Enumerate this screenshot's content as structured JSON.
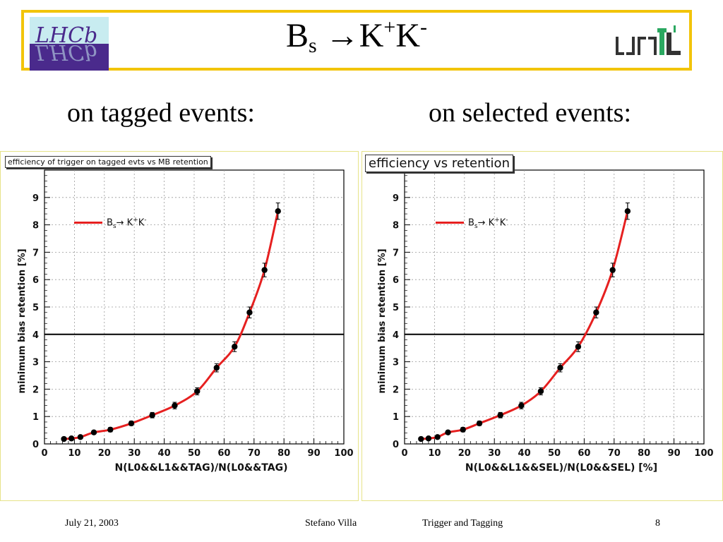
{
  "slide": {
    "title": {
      "base": "B",
      "sub": "s",
      "arrow": " →K",
      "sup1": "+",
      "mid": "K",
      "sup2": "-"
    },
    "subheads": {
      "left": "on tagged events:",
      "right": "on selected events:"
    },
    "logos": {
      "left": "LHCb",
      "right": "UNIL"
    },
    "footer": {
      "date": "July 21, 2003",
      "author": "Stefano Villa",
      "talk": "Trigger and Tagging",
      "page": "8"
    }
  },
  "colors": {
    "header_border": "#f2c40a",
    "curve": "#e62020",
    "marker": "#000000",
    "threshold": "#000000"
  },
  "chart_data": [
    {
      "type": "line",
      "title": "efficiency of trigger on tagged evts vs MB retention",
      "xlabel": "N(L0&&L1&&TAG)/N(L0&&TAG)",
      "ylabel": "minimum bias retention [%]",
      "xlim": [
        0,
        100
      ],
      "ylim": [
        0,
        10
      ],
      "xticks": [
        "0",
        "10",
        "20",
        "30",
        "40",
        "50",
        "60",
        "70",
        "80",
        "90",
        "100"
      ],
      "yticks": [
        "0",
        "1",
        "2",
        "3",
        "4",
        "5",
        "6",
        "7",
        "8",
        "9"
      ],
      "grid": true,
      "legend_position": "top-left",
      "threshold_y": 4,
      "series": [
        {
          "name_parts": {
            "b": "B",
            "s": "s",
            "arrow": "→ K",
            "p": "+",
            "k": "K",
            "m": "-"
          },
          "x": [
            6.5,
            9,
            12,
            16.5,
            22,
            29,
            36,
            43.5,
            51,
            57.5,
            63.5,
            68.5,
            73.5,
            78
          ],
          "y": [
            0.18,
            0.2,
            0.25,
            0.42,
            0.52,
            0.75,
            1.05,
            1.4,
            1.92,
            2.78,
            3.55,
            4.8,
            6.35,
            8.5
          ],
          "yerr": [
            0.05,
            0.05,
            0.06,
            0.07,
            0.08,
            0.08,
            0.1,
            0.12,
            0.13,
            0.15,
            0.18,
            0.2,
            0.25,
            0.3
          ]
        }
      ]
    },
    {
      "type": "line",
      "title": "efficiency vs retention",
      "xlabel": "N(L0&&L1&&SEL)/N(L0&&SEL) [%]",
      "ylabel": "minimum bias retention [%]",
      "xlim": [
        0,
        100
      ],
      "ylim": [
        0,
        10
      ],
      "xticks": [
        "0",
        "10",
        "20",
        "30",
        "40",
        "50",
        "60",
        "70",
        "80",
        "90",
        "100"
      ],
      "yticks": [
        "0",
        "1",
        "2",
        "3",
        "4",
        "5",
        "6",
        "7",
        "8",
        "9"
      ],
      "grid": true,
      "legend_position": "top-left",
      "threshold_y": 4,
      "series": [
        {
          "name_parts": {
            "b": "B",
            "s": "s",
            "arrow": "→ K",
            "p": "+",
            "k": "K",
            "m": "-"
          },
          "x": [
            5.5,
            8,
            11,
            14.5,
            19.5,
            25,
            32,
            39,
            45.5,
            52,
            58,
            64,
            69.5,
            74.5
          ],
          "y": [
            0.18,
            0.2,
            0.25,
            0.42,
            0.52,
            0.75,
            1.05,
            1.4,
            1.92,
            2.78,
            3.55,
            4.8,
            6.35,
            8.5
          ],
          "yerr": [
            0.05,
            0.05,
            0.06,
            0.07,
            0.08,
            0.08,
            0.1,
            0.12,
            0.13,
            0.15,
            0.18,
            0.2,
            0.25,
            0.3
          ]
        }
      ]
    }
  ]
}
